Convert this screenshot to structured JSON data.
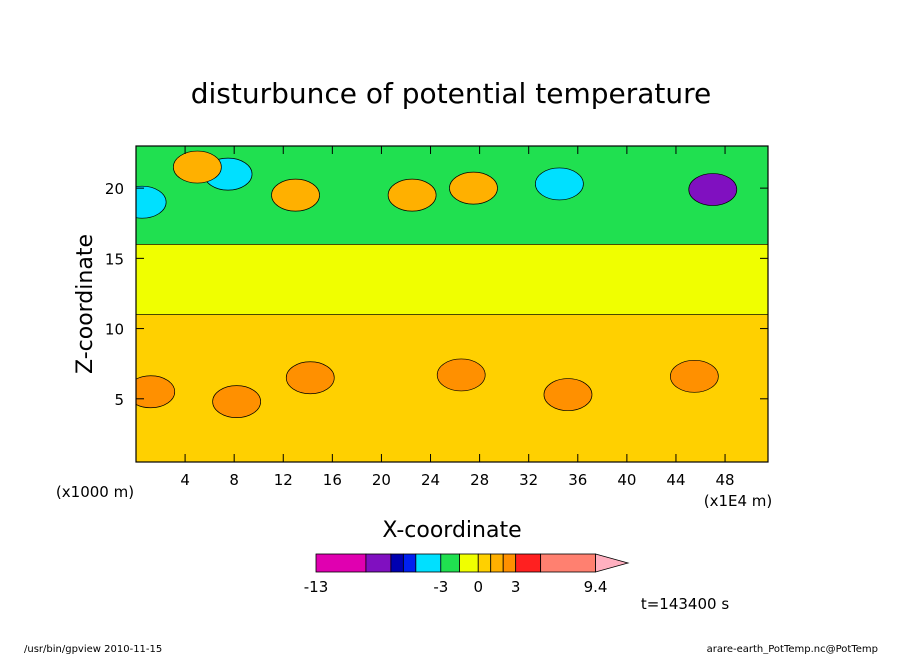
{
  "chart_data": {
    "type": "heatmap",
    "title": "disturbunce of potential temperature",
    "xlabel": "X-coordinate",
    "ylabel": "Z-coordinate",
    "x_unit_left": "(x1000 m)",
    "x_unit_right": "(x1E4 m)",
    "xlim": [
      0,
      51.5
    ],
    "ylim": [
      0.5,
      23
    ],
    "x_ticks": [
      4,
      8,
      12,
      16,
      20,
      24,
      28,
      32,
      36,
      40,
      44,
      48
    ],
    "y_ticks": [
      5,
      10,
      15,
      20
    ],
    "colorbar": {
      "labels": [
        "-13",
        "-3",
        "0",
        "3",
        "9.4"
      ],
      "label_values": [
        -13,
        -3,
        0,
        3,
        9.4
      ],
      "bins": [
        {
          "from": -13,
          "to": -9,
          "color": "#e000b0"
        },
        {
          "from": -9,
          "to": -7,
          "color": "#8010c0"
        },
        {
          "from": -7,
          "to": -6,
          "color": "#0000b0"
        },
        {
          "from": -6,
          "to": -5,
          "color": "#0020f0"
        },
        {
          "from": -5,
          "to": -3,
          "color": "#00e0ff"
        },
        {
          "from": -3,
          "to": -1.5,
          "color": "#20e050"
        },
        {
          "from": -1.5,
          "to": 0,
          "color": "#f0ff00"
        },
        {
          "from": 0,
          "to": 1,
          "color": "#ffd000"
        },
        {
          "from": 1,
          "to": 2,
          "color": "#ffb000"
        },
        {
          "from": 2,
          "to": 3,
          "color": "#ff9000"
        },
        {
          "from": 3,
          "to": 5,
          "color": "#ff2020"
        },
        {
          "from": 5,
          "to": 9.4,
          "color": "#ff8070"
        },
        {
          "from": 9.4,
          "to": 12,
          "color": "#ffb0c0"
        }
      ]
    },
    "regions": [
      {
        "z_min": 0.5,
        "z_max": 11,
        "level": 0.5,
        "color": "#ffd000"
      },
      {
        "z_min": 11,
        "z_max": 16,
        "level": -0.8,
        "color": "#f0ff00"
      },
      {
        "z_min": 16,
        "z_max": 23,
        "level": -2,
        "color": "#20e050"
      }
    ],
    "features": [
      {
        "x": 1.2,
        "z": 5.5,
        "level": 2.5
      },
      {
        "x": 8.2,
        "z": 4.8,
        "level": 2.5
      },
      {
        "x": 14.2,
        "z": 6.5,
        "level": 2.5
      },
      {
        "x": 26.5,
        "z": 6.7,
        "level": 2.5
      },
      {
        "x": 35.2,
        "z": 5.3,
        "level": 2.5
      },
      {
        "x": 45.5,
        "z": 6.6,
        "level": 2.5
      },
      {
        "x": 22.5,
        "z": 19.5,
        "level": 1.5
      },
      {
        "x": 13,
        "z": 19.5,
        "level": 1.5
      },
      {
        "x": 27.5,
        "z": 20,
        "level": 1.5
      },
      {
        "x": 47,
        "z": 19.9,
        "level": -8
      },
      {
        "x": 34.5,
        "z": 20.3,
        "level": -5
      },
      {
        "x": 7.5,
        "z": 21,
        "level": -4
      },
      {
        "x": 0.5,
        "z": 19,
        "level": -4
      },
      {
        "x": 5,
        "z": 21.5,
        "level": 1.5
      }
    ],
    "time_label": "t=143400 s"
  },
  "footer": {
    "left": "/usr/bin/gpview  2010-11-15",
    "right": "arare-earth_PotTemp.nc@PotTemp"
  }
}
